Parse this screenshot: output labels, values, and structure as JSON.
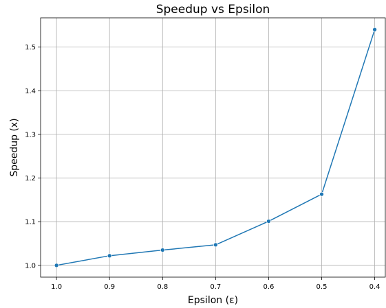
{
  "chart_data": {
    "type": "line",
    "title": "Speedup vs Epsilon",
    "xlabel": "Epsilon (ε)",
    "ylabel": "Speedup (x)",
    "x": [
      1.0,
      0.9,
      0.8,
      0.7,
      0.6,
      0.5,
      0.4
    ],
    "series": [
      {
        "values": [
          1.0,
          1.022,
          1.035,
          1.047,
          1.101,
          1.163,
          1.54
        ],
        "color": "#1f77b4",
        "marker": "circle"
      }
    ],
    "x_ticks": [
      "1.0",
      "0.9",
      "0.8",
      "0.7",
      "0.6",
      "0.5",
      "0.4"
    ],
    "y_ticks": [
      "1.0",
      "1.1",
      "1.2",
      "1.3",
      "1.4",
      "1.5"
    ],
    "xlim": [
      1.03,
      0.38
    ],
    "ylim": [
      0.973,
      1.567
    ],
    "x_reversed": true,
    "grid": true
  }
}
